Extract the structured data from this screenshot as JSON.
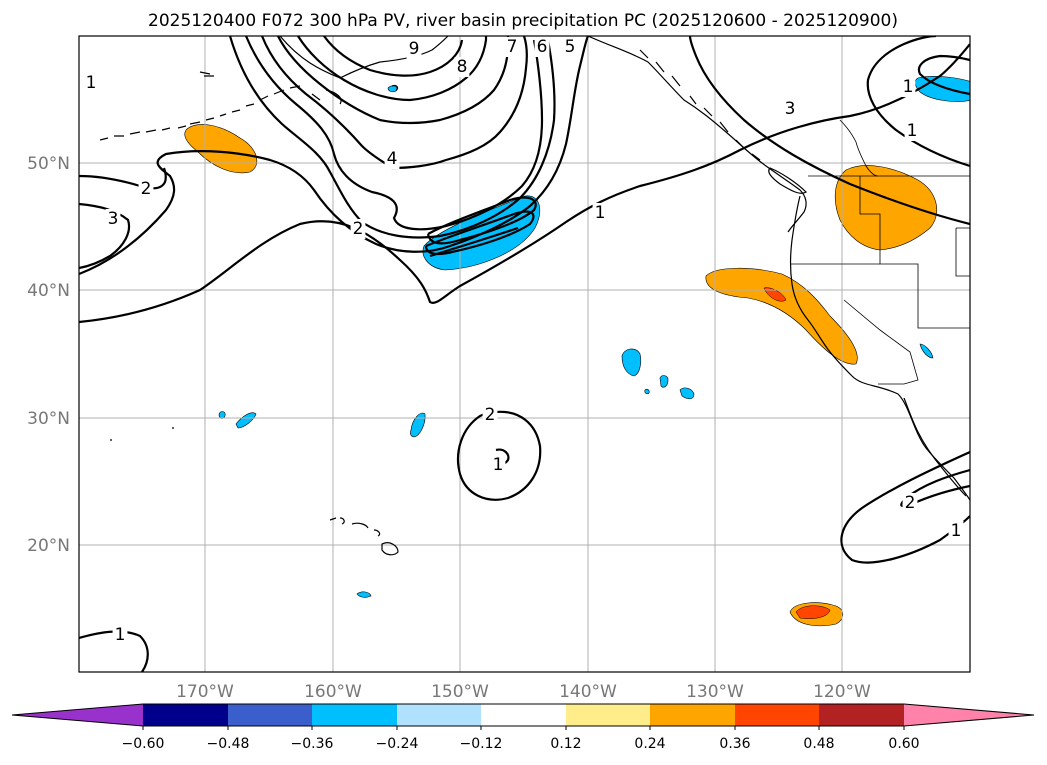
{
  "title": "2025120400 F072 300 hPa PV, river basin precipitation PC (2025120600 - 2025120900)",
  "map": {
    "lat_labels": [
      "50°N",
      "40°N",
      "30°N",
      "20°N"
    ],
    "lon_labels": [
      "170°W",
      "160°W",
      "150°W",
      "140°W",
      "130°W",
      "120°W"
    ]
  },
  "pv_contour_labels": [
    "1",
    "2",
    "3",
    "4",
    "5",
    "6",
    "7",
    "8",
    "9",
    "1",
    "2",
    "1",
    "1",
    "2",
    "3",
    "1",
    "1",
    "2",
    "1"
  ],
  "colorbar": {
    "tick_labels": [
      "−0.60",
      "−0.48",
      "−0.36",
      "−0.24",
      "−0.12",
      "0.12",
      "0.24",
      "0.36",
      "0.48",
      "0.60"
    ],
    "colors": {
      "under": "#9932cc",
      "c1": "#00008b",
      "c2": "#3a5fcd",
      "c3": "#00bfff",
      "c4": "#b0e2ff",
      "c5": "#ffffff",
      "c6": "#ffec8b",
      "c7": "#ffa500",
      "c8": "#ff4500",
      "c9": "#b22222",
      "over": "#ff82ab"
    }
  }
}
